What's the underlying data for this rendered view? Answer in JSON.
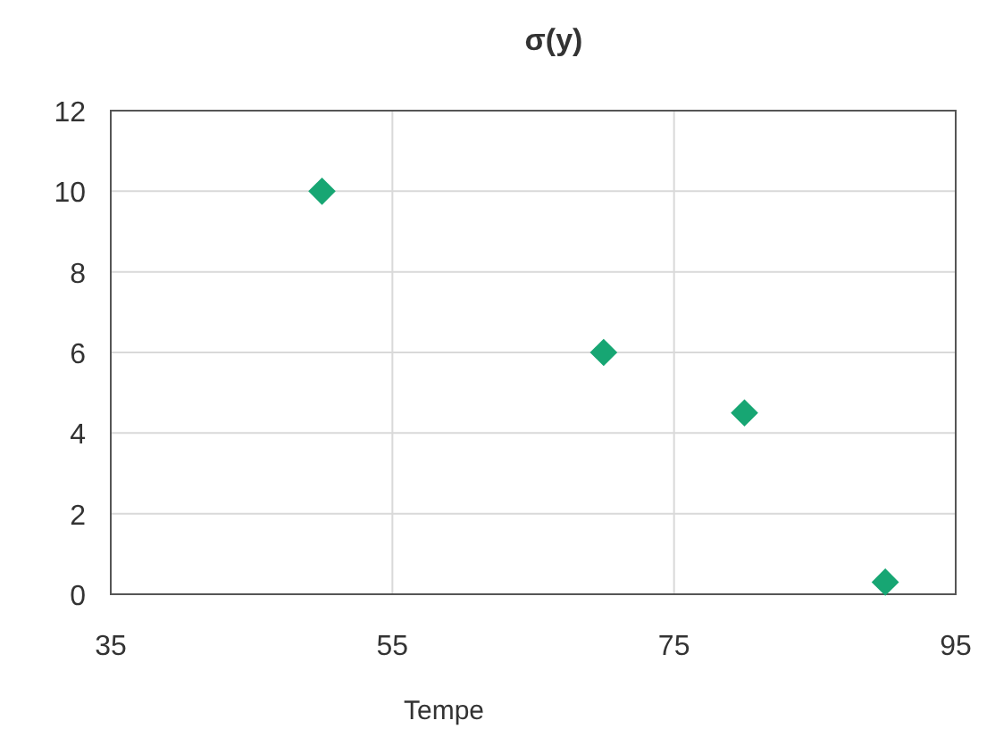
{
  "chart_data": {
    "type": "scatter",
    "title": "σ(y)",
    "xlabel": "Tempe",
    "x": [
      50,
      70,
      80,
      90
    ],
    "series": [
      {
        "color": "#17a673",
        "values": [
          10,
          6,
          4.5,
          0.3
        ]
      }
    ],
    "xlim": [
      35,
      95
    ],
    "xticks": [
      35,
      55,
      75,
      95
    ],
    "ylim": [
      0,
      12
    ],
    "yticks": [
      0,
      2,
      4,
      6,
      8,
      10,
      12
    ],
    "grid": true,
    "marker": "diamond"
  }
}
